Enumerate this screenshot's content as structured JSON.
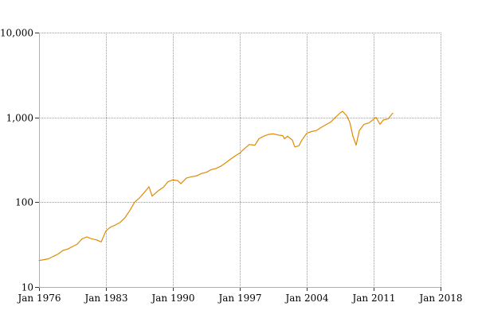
{
  "chart_data": {
    "type": "line",
    "title": "",
    "xlabel": "",
    "ylabel": "",
    "y_scale": "log",
    "grid": true,
    "legend": "none",
    "xlim": [
      "1976-01",
      "2018-01"
    ],
    "ylim": [
      10,
      10000
    ],
    "x_ticks": [
      {
        "value": "1976-01",
        "label": "Jan 1976"
      },
      {
        "value": "1983-01",
        "label": "Jan 1983"
      },
      {
        "value": "1990-01",
        "label": "Jan 1990"
      },
      {
        "value": "1997-01",
        "label": "Jan 1997"
      },
      {
        "value": "2004-01",
        "label": "Jan 2004"
      },
      {
        "value": "2011-01",
        "label": "Jan 2011"
      },
      {
        "value": "2018-01",
        "label": "Jan 2018"
      }
    ],
    "y_ticks": [
      {
        "value": 10,
        "label": "10"
      },
      {
        "value": 100,
        "label": "100"
      },
      {
        "value": 1000,
        "label": "1,000"
      },
      {
        "value": 10000,
        "label": "10,000"
      }
    ],
    "series": [
      {
        "color": "#e08a00",
        "points": [
          [
            "1976-01",
            20.5
          ],
          [
            "1976-07",
            21
          ],
          [
            "1977-01",
            21.5
          ],
          [
            "1977-07",
            23
          ],
          [
            "1978-01",
            24.5
          ],
          [
            "1978-07",
            27
          ],
          [
            "1979-01",
            28
          ],
          [
            "1979-07",
            30
          ],
          [
            "1980-01",
            32
          ],
          [
            "1980-07",
            37
          ],
          [
            "1981-01",
            39
          ],
          [
            "1981-07",
            37
          ],
          [
            "1982-01",
            36
          ],
          [
            "1982-07",
            34
          ],
          [
            "1983-01",
            46
          ],
          [
            "1983-07",
            51
          ],
          [
            "1984-01",
            54
          ],
          [
            "1984-07",
            58
          ],
          [
            "1985-01",
            66
          ],
          [
            "1985-07",
            80
          ],
          [
            "1986-01",
            100
          ],
          [
            "1986-07",
            112
          ],
          [
            "1987-01",
            130
          ],
          [
            "1987-07",
            152
          ],
          [
            "1987-11",
            118
          ],
          [
            "1988-06",
            135
          ],
          [
            "1989-01",
            150
          ],
          [
            "1989-07",
            175
          ],
          [
            "1990-01",
            183
          ],
          [
            "1990-07",
            180
          ],
          [
            "1990-11",
            165
          ],
          [
            "1991-06",
            193
          ],
          [
            "1992-01",
            200
          ],
          [
            "1992-07",
            205
          ],
          [
            "1993-01",
            218
          ],
          [
            "1993-07",
            225
          ],
          [
            "1994-01",
            242
          ],
          [
            "1994-07",
            250
          ],
          [
            "1995-01",
            265
          ],
          [
            "1995-07",
            290
          ],
          [
            "1996-01",
            320
          ],
          [
            "1996-07",
            350
          ],
          [
            "1997-01",
            380
          ],
          [
            "1997-07",
            430
          ],
          [
            "1998-01",
            480
          ],
          [
            "1998-08",
            470
          ],
          [
            "1999-01",
            560
          ],
          [
            "1999-07",
            600
          ],
          [
            "2000-01",
            630
          ],
          [
            "2000-07",
            640
          ],
          [
            "2001-01",
            620
          ],
          [
            "2001-07",
            610
          ],
          [
            "2001-09",
            560
          ],
          [
            "2002-01",
            600
          ],
          [
            "2002-07",
            540
          ],
          [
            "2002-10",
            450
          ],
          [
            "2003-03",
            460
          ],
          [
            "2003-07",
            540
          ],
          [
            "2004-01",
            650
          ],
          [
            "2004-07",
            680
          ],
          [
            "2005-01",
            700
          ],
          [
            "2005-07",
            760
          ],
          [
            "2006-01",
            820
          ],
          [
            "2006-07",
            880
          ],
          [
            "2007-01",
            1000
          ],
          [
            "2007-07",
            1130
          ],
          [
            "2007-10",
            1180
          ],
          [
            "2008-03",
            1050
          ],
          [
            "2008-07",
            880
          ],
          [
            "2008-11",
            600
          ],
          [
            "2009-03",
            470
          ],
          [
            "2009-07",
            700
          ],
          [
            "2010-01",
            830
          ],
          [
            "2010-07",
            860
          ],
          [
            "2011-01",
            950
          ],
          [
            "2011-04",
            1000
          ],
          [
            "2011-09",
            830
          ],
          [
            "2012-01",
            930
          ],
          [
            "2012-07",
            960
          ],
          [
            "2013-01",
            1120
          ]
        ]
      }
    ]
  }
}
